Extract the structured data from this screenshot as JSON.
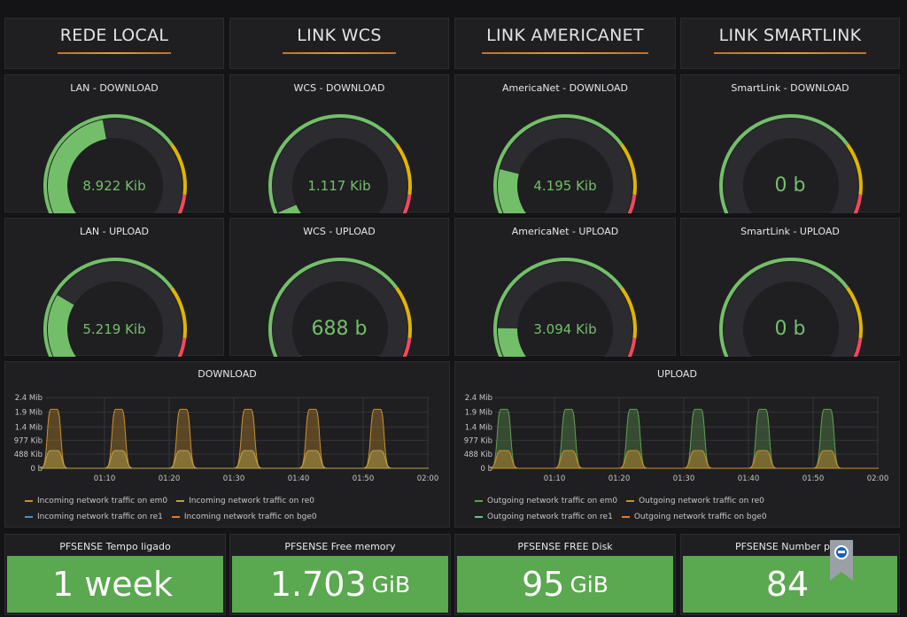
{
  "headers": [
    "REDE LOCAL",
    "LINK WCS",
    "LINK AMERICANET",
    "LINK SMARTLINK"
  ],
  "gauges": [
    {
      "title": "LAN - DOWNLOAD",
      "value": "8.922 Kib",
      "fraction": 0.46
    },
    {
      "title": "WCS - DOWNLOAD",
      "value": "1.117 Kib",
      "fraction": 0.08
    },
    {
      "title": "AmericaNet - DOWNLOAD",
      "value": "4.195 Kib",
      "fraction": 0.22
    },
    {
      "title": "SmartLink - DOWNLOAD",
      "value": "0 b",
      "fraction": 0
    },
    {
      "title": "LAN - UPLOAD",
      "value": "5.219 Kib",
      "fraction": 0.28
    },
    {
      "title": "WCS - UPLOAD",
      "value": "688 b",
      "fraction": 0.04
    },
    {
      "title": "AmericaNet - UPLOAD",
      "value": "3.094 Kib",
      "fraction": 0.17
    },
    {
      "title": "SmartLink - UPLOAD",
      "value": "0 b",
      "fraction": 0
    }
  ],
  "colors": {
    "gauge_green": "#73bf69",
    "gauge_orange": "#e0b400",
    "gauge_red": "#f2495c",
    "stat_green": "#5aa84f",
    "series_orange": "#c88f2c",
    "series_green": "#629e51"
  },
  "charts": [
    {
      "title": "DOWNLOAD",
      "legend": [
        [
          "Incoming network traffic on em0",
          "Incoming network traffic on re0"
        ],
        [
          "Incoming network traffic on re1",
          "Incoming network traffic on bge0"
        ]
      ]
    },
    {
      "title": "UPLOAD",
      "legend": [
        [
          "Outgoing network traffic on em0",
          "Outgoing network traffic on re0"
        ],
        [
          "Outgoing network traffic on re1",
          "Outgoing network traffic on bge0"
        ]
      ]
    }
  ],
  "chart_data": [
    {
      "type": "area",
      "title": "DOWNLOAD",
      "y_ticks": [
        "2.4 Mib",
        "1.9 Mib",
        "1.4 Mib",
        "977 Kib",
        "488 Kib",
        "0 b"
      ],
      "x_ticks": [
        "01:10",
        "01:20",
        "01:30",
        "01:40",
        "01:50",
        "02:00"
      ],
      "ylim": [
        0,
        2.4
      ],
      "series": [
        {
          "name": "Incoming network traffic on em0",
          "peaks_mib": [
            2.0,
            2.0,
            2.0,
            2.0,
            2.0,
            2.0
          ],
          "color": "#c88f2c"
        },
        {
          "name": "Incoming network traffic on re0",
          "peaks_mib": [
            0.6,
            0.6,
            0.6,
            0.6,
            0.6,
            0.6
          ],
          "color": "#b9a24a"
        }
      ]
    },
    {
      "type": "area",
      "title": "UPLOAD",
      "y_ticks": [
        "2.4 Mib",
        "1.9 Mib",
        "1.4 Mib",
        "977 Kib",
        "488 Kib",
        "0 b"
      ],
      "x_ticks": [
        "01:10",
        "01:20",
        "01:30",
        "01:40",
        "01:50",
        "02:00"
      ],
      "ylim": [
        0,
        2.4
      ],
      "series": [
        {
          "name": "Outgoing network traffic on em0",
          "peaks_mib": [
            2.0,
            2.0,
            2.0,
            2.0,
            2.0,
            2.0
          ],
          "color": "#629e51"
        },
        {
          "name": "Outgoing network traffic on re0",
          "peaks_mib": [
            0.6,
            0.6,
            0.6,
            0.6,
            0.6,
            0.6
          ],
          "color": "#c88f2c"
        }
      ]
    }
  ],
  "stats": [
    {
      "title": "PFSENSE Tempo ligado",
      "value": "1 week",
      "unit": ""
    },
    {
      "title": "PFSENSE Free memory",
      "value": "1.703",
      "unit": "GiB"
    },
    {
      "title": "PFSENSE FREE Disk",
      "value": "95",
      "unit": "GiB"
    },
    {
      "title": "PFSENSE Number proc",
      "value": "84",
      "unit": ""
    }
  ]
}
